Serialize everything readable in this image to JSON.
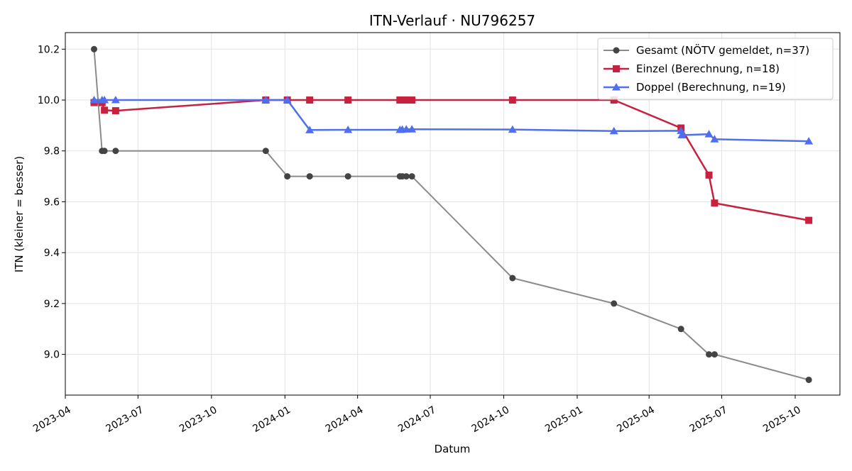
{
  "chart_data": {
    "type": "line",
    "title": "ITN-Verlauf · NU796257",
    "xlabel": "Datum",
    "ylabel": "ITN  (kleiner = besser)",
    "x_axis_type": "date",
    "xlim": [
      "2023-04-01",
      "2025-11-26"
    ],
    "ylim": [
      8.84,
      10.265
    ],
    "x_ticks": [
      "2023-04",
      "2023-07",
      "2023-10",
      "2024-01",
      "2024-04",
      "2024-07",
      "2024-10",
      "2025-01",
      "2025-04",
      "2025-07",
      "2025-10"
    ],
    "y_ticks": [
      9.0,
      9.2,
      9.4,
      9.6,
      9.8,
      10.0,
      10.2
    ],
    "grid": true,
    "legend_position": "top-right",
    "series": [
      {
        "name": "Gesamt (NÖTV gemeldet, n=37)",
        "color": "#666666",
        "marker": "circle",
        "points": [
          {
            "x": "2023-05-07",
            "y": 10.2
          },
          {
            "x": "2023-05-17",
            "y": 9.8
          },
          {
            "x": "2023-05-20",
            "y": 9.8
          },
          {
            "x": "2023-06-03",
            "y": 9.8
          },
          {
            "x": "2023-12-08",
            "y": 9.8
          },
          {
            "x": "2024-01-04",
            "y": 9.7
          },
          {
            "x": "2024-02-01",
            "y": 9.7
          },
          {
            "x": "2024-03-20",
            "y": 9.7
          },
          {
            "x": "2024-05-24",
            "y": 9.7
          },
          {
            "x": "2024-05-27",
            "y": 9.7
          },
          {
            "x": "2024-06-01",
            "y": 9.7
          },
          {
            "x": "2024-06-08",
            "y": 9.7
          },
          {
            "x": "2024-10-12",
            "y": 9.3
          },
          {
            "x": "2025-02-16",
            "y": 9.2
          },
          {
            "x": "2025-05-11",
            "y": 9.1
          },
          {
            "x": "2025-06-15",
            "y": 9.0
          },
          {
            "x": "2025-06-22",
            "y": 9.0
          },
          {
            "x": "2025-10-18",
            "y": 8.9
          }
        ]
      },
      {
        "name": "Einzel (Berechnung, n=18)",
        "color": "#c8213f",
        "marker": "square",
        "points": [
          {
            "x": "2023-05-07",
            "y": 9.99
          },
          {
            "x": "2023-05-17",
            "y": 9.99
          },
          {
            "x": "2023-05-20",
            "y": 9.96
          },
          {
            "x": "2023-06-03",
            "y": 9.958
          },
          {
            "x": "2023-12-08",
            "y": 10.0
          },
          {
            "x": "2024-01-04",
            "y": 10.0
          },
          {
            "x": "2024-02-01",
            "y": 10.0
          },
          {
            "x": "2024-03-20",
            "y": 10.0
          },
          {
            "x": "2024-05-24",
            "y": 10.0
          },
          {
            "x": "2024-05-27",
            "y": 10.0
          },
          {
            "x": "2024-06-01",
            "y": 10.0
          },
          {
            "x": "2024-06-08",
            "y": 10.0
          },
          {
            "x": "2024-10-12",
            "y": 10.0
          },
          {
            "x": "2025-02-16",
            "y": 10.0
          },
          {
            "x": "2025-05-11",
            "y": 9.89
          },
          {
            "x": "2025-06-15",
            "y": 9.705
          },
          {
            "x": "2025-06-22",
            "y": 9.595
          },
          {
            "x": "2025-10-18",
            "y": 9.527
          }
        ]
      },
      {
        "name": "Doppel (Berechnung, n=19)",
        "color": "#4f6ff0",
        "marker": "triangle",
        "points": [
          {
            "x": "2023-05-07",
            "y": 10.0
          },
          {
            "x": "2023-05-17",
            "y": 10.0
          },
          {
            "x": "2023-05-20",
            "y": 10.0
          },
          {
            "x": "2023-06-03",
            "y": 10.0
          },
          {
            "x": "2023-12-08",
            "y": 10.0
          },
          {
            "x": "2024-01-04",
            "y": 10.0
          },
          {
            "x": "2024-02-01",
            "y": 9.882
          },
          {
            "x": "2024-03-20",
            "y": 9.883
          },
          {
            "x": "2024-05-24",
            "y": 9.883
          },
          {
            "x": "2024-05-27",
            "y": 9.884
          },
          {
            "x": "2024-06-01",
            "y": 9.885
          },
          {
            "x": "2024-06-08",
            "y": 9.885
          },
          {
            "x": "2024-10-12",
            "y": 9.884
          },
          {
            "x": "2025-02-16",
            "y": 9.878
          },
          {
            "x": "2025-05-11",
            "y": 9.879
          },
          {
            "x": "2025-05-12",
            "y": 9.862
          },
          {
            "x": "2025-06-15",
            "y": 9.866
          },
          {
            "x": "2025-06-22",
            "y": 9.846
          },
          {
            "x": "2025-10-18",
            "y": 9.838
          }
        ]
      }
    ]
  }
}
